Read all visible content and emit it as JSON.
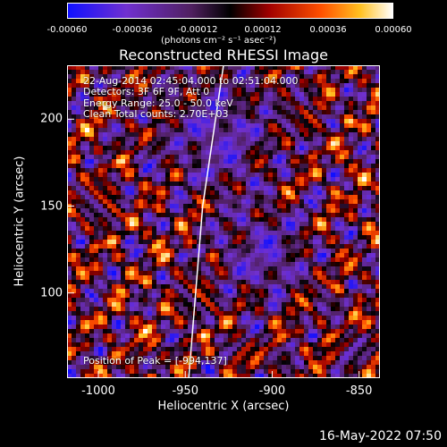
{
  "chart_data": {
    "type": "heatmap",
    "title": "Reconstructed RHESSI Image",
    "xlabel": "Heliocentric X (arcsec)",
    "ylabel": "Heliocentric Y (arcsec)",
    "xlim": [
      -1018,
      -838
    ],
    "ylim": [
      51,
      231
    ],
    "xticks": [
      -1000,
      -950,
      -900,
      -850
    ],
    "yticks": [
      100,
      150,
      200
    ],
    "colorbar": {
      "range": [
        -0.0006,
        0.0006
      ],
      "tick_labels": [
        "-0.00060",
        "-0.00036",
        "-0.00012",
        "0.00012",
        "0.00036",
        "0.00060"
      ],
      "tick_values": [
        -0.0006,
        -0.00036,
        -0.00012,
        0.00012,
        0.00036,
        0.0006
      ],
      "unit_label": "(photons cm⁻² s⁻¹ asec⁻²)"
    },
    "annotations": {
      "time": "22-Aug-2014 02:45:04.000 to 02:51:04.000",
      "detectors": "Detectors: 3F 6F 9F, Att 0",
      "energy": "Energy Range: 25.0 - 50.0 keV",
      "method": "Clean     Total counts: 2.70E+03",
      "peak": "Position of Peak = [-994,137]"
    },
    "limb_line": {
      "points": [
        [
          -928,
          231
        ],
        [
          -940,
          150
        ],
        [
          -948,
          51
        ]
      ]
    }
  },
  "footer": {
    "timestamp": "16-May-2022 07:50"
  }
}
